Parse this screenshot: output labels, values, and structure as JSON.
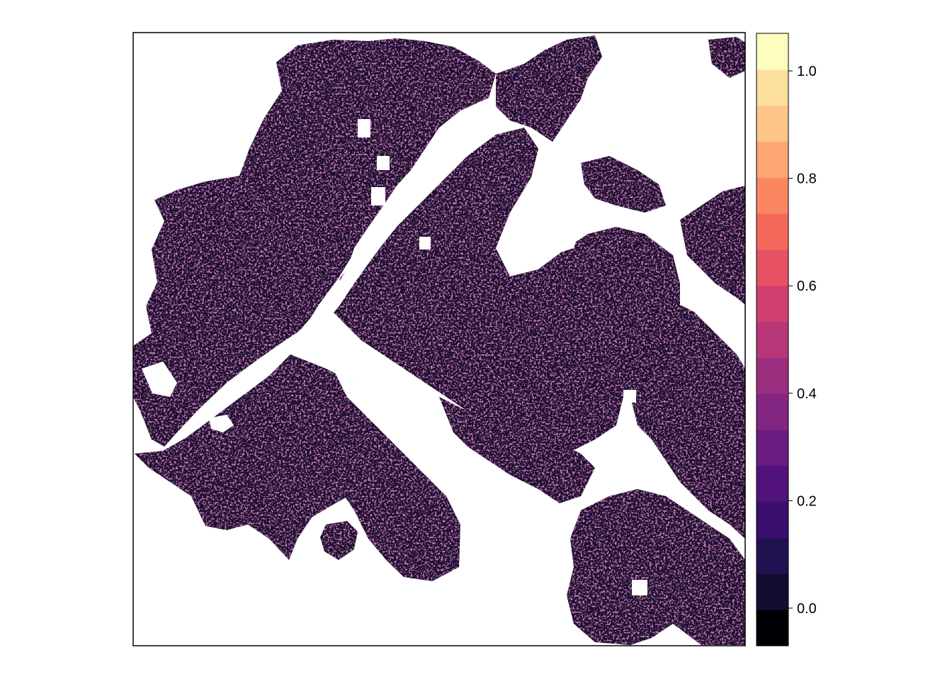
{
  "map": {
    "type": "raster",
    "background_color": "#ffffff",
    "na_color": "#ffffff",
    "frame": true
  },
  "legend": {
    "placement": "right",
    "palette": "magma",
    "range": [
      -0.07,
      1.07
    ],
    "colors": [
      "#000004",
      "#120d31",
      "#221150",
      "#3a0f6e",
      "#51127c",
      "#6a1c81",
      "#832681",
      "#9c2e7f",
      "#b73779",
      "#cf4070",
      "#e65164",
      "#f4685c",
      "#fb8761",
      "#fea673",
      "#fec589",
      "#fcdf9c",
      "#fcfdbf"
    ],
    "ticks": [
      {
        "value": 0.0,
        "label": "0.0"
      },
      {
        "value": 0.2,
        "label": "0.2"
      },
      {
        "value": 0.4,
        "label": "0.4"
      },
      {
        "value": 0.6,
        "label": "0.6"
      },
      {
        "value": 0.8,
        "label": "0.8"
      },
      {
        "value": 1.0,
        "label": "1.0"
      }
    ]
  }
}
